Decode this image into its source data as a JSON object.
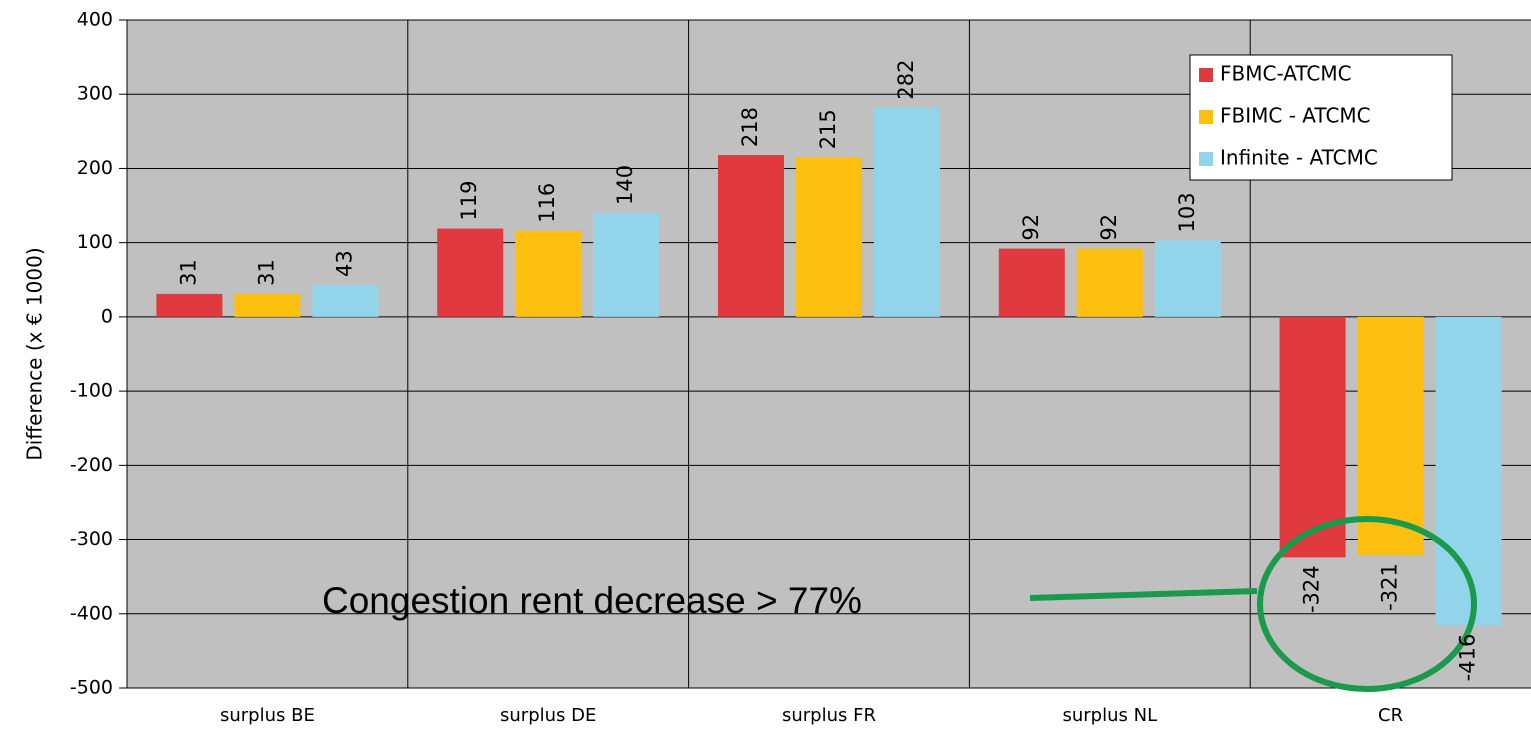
{
  "chart_data": {
    "type": "bar",
    "ylabel": "Difference (x € 1000)",
    "categories": [
      "surplus BE",
      "surplus DE",
      "surplus FR",
      "surplus NL",
      "CR"
    ],
    "series": [
      {
        "name": "FBMC-ATCMC",
        "color": "#e0393e",
        "values": [
          31,
          119,
          218,
          92,
          -324
        ]
      },
      {
        "name": "FBIMC - ATCMC",
        "color": "#fdc010",
        "values": [
          31,
          116,
          215,
          92,
          -321
        ]
      },
      {
        "name": "Infinite - ATCMC",
        "color": "#92d5ea",
        "values": [
          43,
          140,
          282,
          103,
          -416
        ]
      }
    ],
    "ylim": [
      -500,
      400
    ],
    "yticks": [
      -500,
      -400,
      -300,
      -200,
      -100,
      0,
      100,
      200,
      300,
      400
    ],
    "grid": true,
    "legend": "top-right",
    "annotation": "Congestion rent decrease > 77%"
  }
}
